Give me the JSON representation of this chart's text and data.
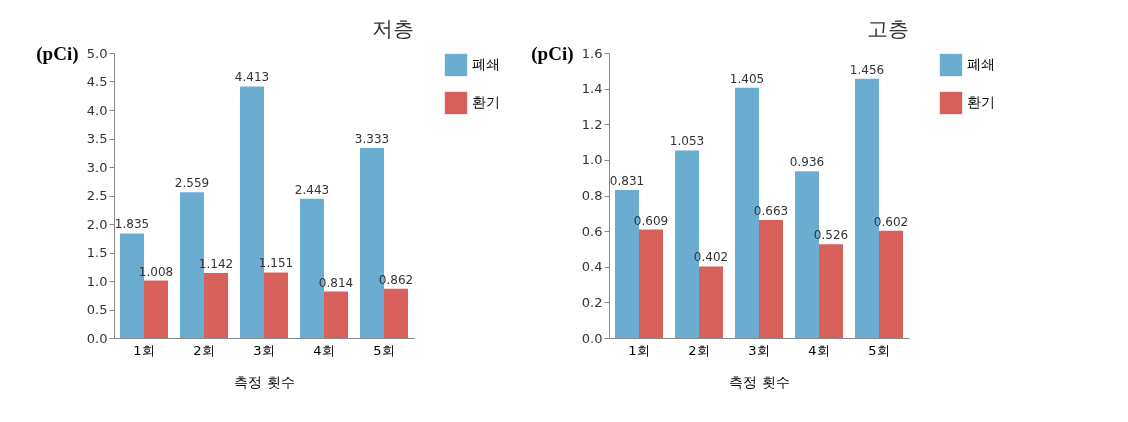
{
  "chart_data": [
    {
      "type": "bar",
      "title": "저층",
      "ylabel": "(pCi)",
      "xlabel": "측정  횟수",
      "categories": [
        "1회",
        "2회",
        "3회",
        "4회",
        "5회"
      ],
      "series": [
        {
          "name": "폐쇄",
          "color": "#6badd1",
          "values": [
            1.835,
            2.559,
            4.413,
            2.443,
            3.333
          ]
        },
        {
          "name": "환기",
          "color": "#d7605b",
          "values": [
            1.008,
            1.142,
            1.151,
            0.814,
            0.862
          ]
        }
      ],
      "ylim": [
        0,
        5
      ],
      "yticks": [
        {
          "value": 0,
          "label": "0.0"
        },
        {
          "value": 0.5,
          "label": "0.5"
        },
        {
          "value": 1,
          "label": "1.0"
        },
        {
          "value": 1.5,
          "label": "1.5"
        },
        {
          "value": 2,
          "label": "2.0"
        },
        {
          "value": 2.5,
          "label": "2.5"
        },
        {
          "value": 3,
          "label": "3.0"
        },
        {
          "value": 3.5,
          "label": "3.5"
        },
        {
          "value": 4,
          "label": "4.0"
        },
        {
          "value": 4.5,
          "label": "4.5"
        },
        {
          "value": 5,
          "label": "5.0"
        }
      ],
      "legend": "right",
      "data_labels": true
    },
    {
      "type": "bar",
      "title": "고층",
      "ylabel": "(pCi)",
      "xlabel": "측정  횟수",
      "categories": [
        "1회",
        "2회",
        "3회",
        "4회",
        "5회"
      ],
      "series": [
        {
          "name": "폐쇄",
          "color": "#6badd1",
          "values": [
            0.831,
            1.053,
            1.405,
            0.936,
            1.456
          ]
        },
        {
          "name": "환기",
          "color": "#d7605b",
          "values": [
            0.609,
            0.402,
            0.663,
            0.526,
            0.602
          ]
        }
      ],
      "ylim": [
        0,
        1.6
      ],
      "yticks": [
        {
          "value": 0,
          "label": "0.0"
        },
        {
          "value": 0.2,
          "label": "0.2"
        },
        {
          "value": 0.4,
          "label": "0.4"
        },
        {
          "value": 0.6,
          "label": "0.6"
        },
        {
          "value": 0.8,
          "label": "0.8"
        },
        {
          "value": 1,
          "label": "1.0"
        },
        {
          "value": 1.2,
          "label": "1.2"
        },
        {
          "value": 1.4,
          "label": "1.4"
        },
        {
          "value": 1.6,
          "label": "1.6"
        }
      ],
      "legend": "right",
      "data_labels": true
    }
  ]
}
